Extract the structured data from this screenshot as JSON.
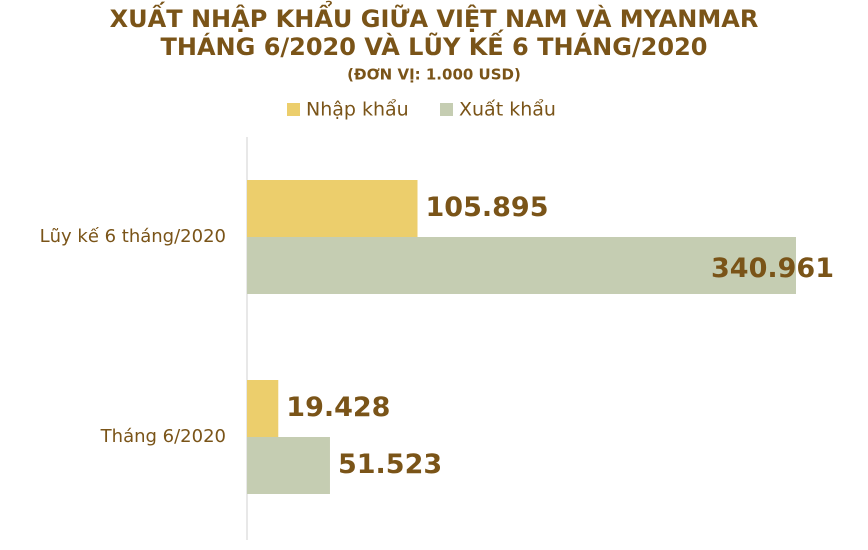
{
  "chart_data": {
    "type": "hbar",
    "title": [
      "XUẤT NHẬP KHẨU GIỮA VIỆT NAM VÀ MYANMAR",
      "THÁNG 6/2020 VÀ LŨY KẾ 6 THÁNG/2020"
    ],
    "subtitle": "(ĐƠN VỊ: 1.000 USD)",
    "categories": [
      "Lũy kế 6 tháng/2020",
      "Tháng 6/2020"
    ],
    "series": [
      {
        "name": "Nhập khẩu",
        "color": "#ecce6c",
        "values": [
          105895,
          19428
        ],
        "value_labels": [
          "105.895",
          "19.428"
        ]
      },
      {
        "name": "Xuất khẩu",
        "color": "#c5cdb2",
        "values": [
          340961,
          51523
        ],
        "value_labels": [
          "340.961",
          "51.523"
        ]
      }
    ]
  }
}
